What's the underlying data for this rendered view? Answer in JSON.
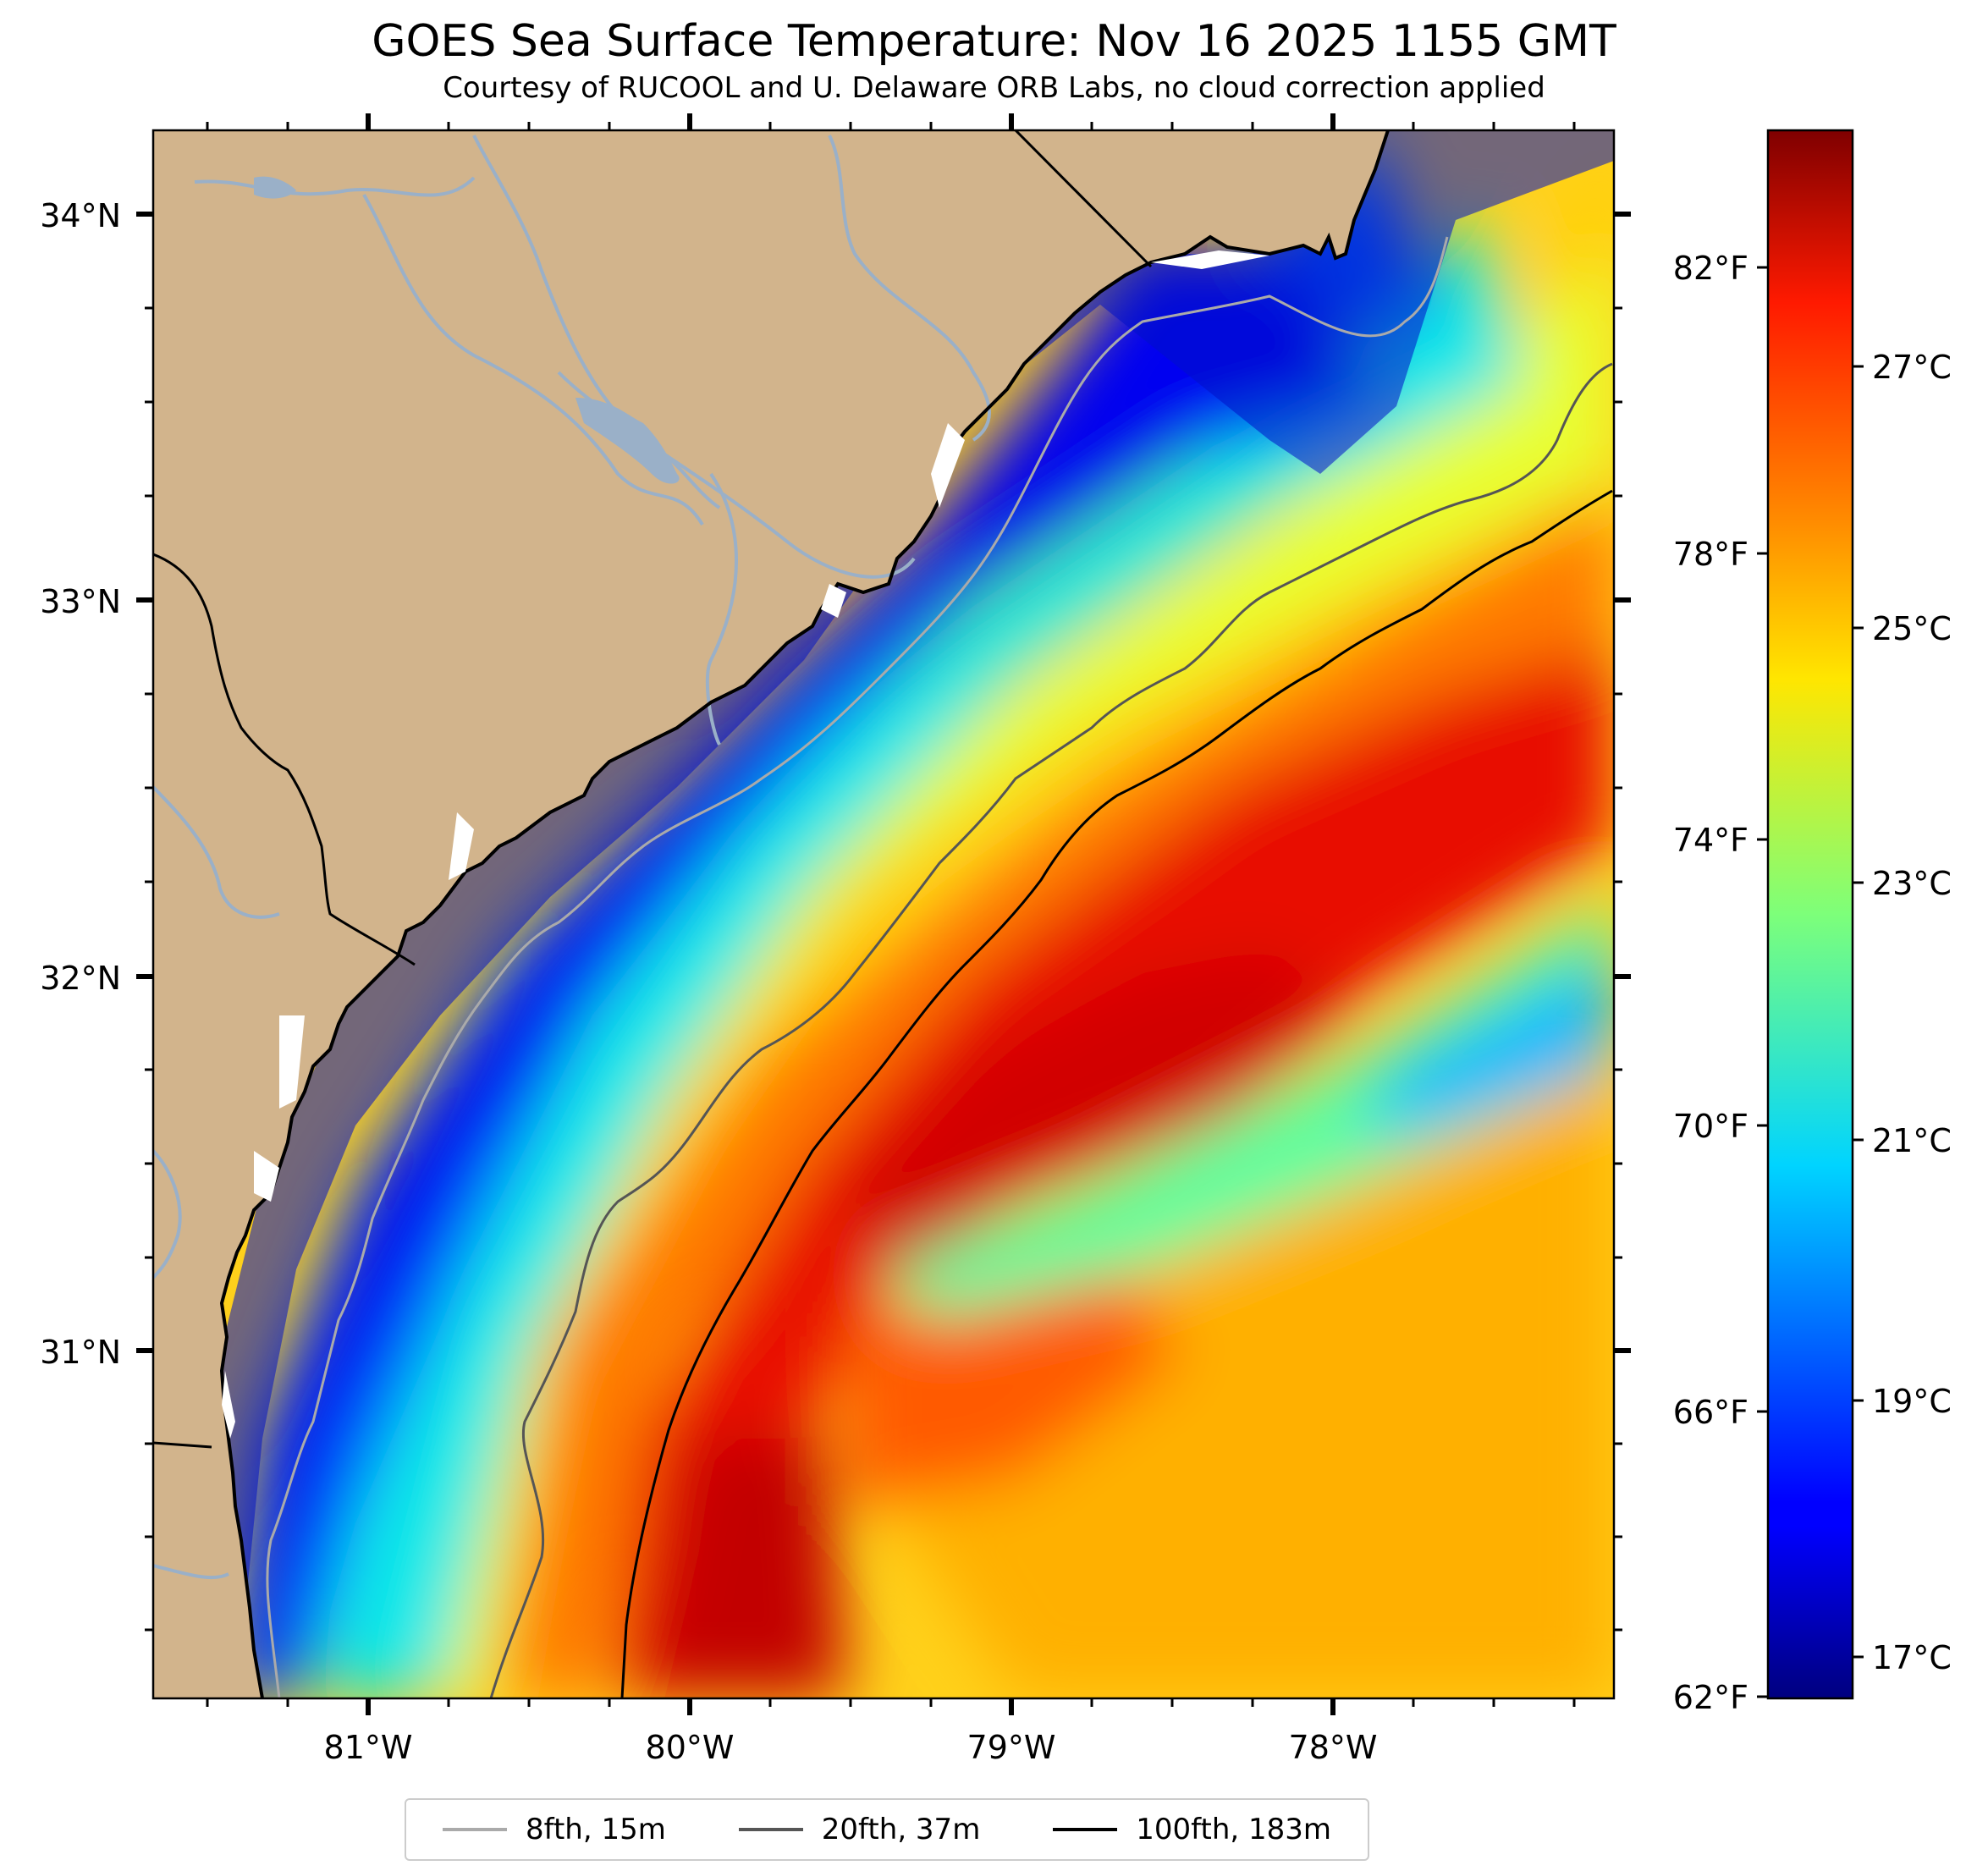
{
  "map": {
    "title": "GOES Sea Surface Temperature: Nov 16 2025 1155 GMT",
    "subtitle": "Courtesy of RUCOOL and U. Delaware ORB Labs, no cloud correction applied",
    "land_color": "#d2b48c",
    "river_color": "#9ab0c8"
  },
  "axes": {
    "lat_labels": [
      "34°N",
      "33°N",
      "32°N",
      "31°N"
    ],
    "lon_labels": [
      "81°W",
      "80°W",
      "79°W",
      "78°W"
    ]
  },
  "colorbar": {
    "fahrenheit_labels": [
      "82°F",
      "78°F",
      "74°F",
      "70°F",
      "66°F",
      "62°F"
    ],
    "celsius_labels": [
      "27°C",
      "25°C",
      "23°C",
      "21°C",
      "19°C",
      "17°C"
    ]
  },
  "legend": {
    "items": [
      {
        "label": "8fth, 15m",
        "color": "#aaaaaa"
      },
      {
        "label": "20fth, 37m",
        "color": "#555555"
      },
      {
        "label": "100fth, 183m",
        "color": "#000000"
      }
    ]
  }
}
